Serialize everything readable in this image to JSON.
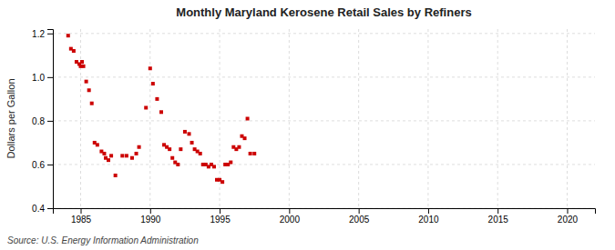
{
  "chart_data": {
    "type": "scatter",
    "title": "Monthly Maryland Kerosene Retail Sales by Refiners",
    "ylabel": "Dollars per Gallon",
    "source": "Source: U.S. Energy Information Administration",
    "x": [
      1984.1,
      1984.3,
      1984.5,
      1984.7,
      1984.9,
      1985.0,
      1985.1,
      1985.2,
      1985.4,
      1985.6,
      1985.8,
      1986.0,
      1986.2,
      1986.5,
      1986.7,
      1986.8,
      1987.0,
      1987.2,
      1987.5,
      1988.0,
      1988.3,
      1988.7,
      1989.0,
      1989.2,
      1989.7,
      1990.0,
      1990.2,
      1990.5,
      1990.8,
      1991.0,
      1991.2,
      1991.4,
      1991.6,
      1991.8,
      1992.0,
      1992.2,
      1992.5,
      1992.8,
      1993.0,
      1993.2,
      1993.4,
      1993.6,
      1993.8,
      1994.0,
      1994.2,
      1994.4,
      1994.6,
      1994.8,
      1995.0,
      1995.2,
      1995.4,
      1995.6,
      1995.8,
      1996.0,
      1996.2,
      1996.4,
      1996.6,
      1996.8,
      1997.0,
      1997.2,
      1997.5
    ],
    "values": [
      1.19,
      1.13,
      1.12,
      1.07,
      1.06,
      1.05,
      1.07,
      1.05,
      0.98,
      0.94,
      0.88,
      0.7,
      0.69,
      0.66,
      0.65,
      0.63,
      0.62,
      0.64,
      0.55,
      0.64,
      0.64,
      0.63,
      0.65,
      0.68,
      0.86,
      1.04,
      0.97,
      0.9,
      0.84,
      0.69,
      0.68,
      0.67,
      0.63,
      0.61,
      0.6,
      0.67,
      0.75,
      0.74,
      0.7,
      0.67,
      0.66,
      0.65,
      0.6,
      0.6,
      0.59,
      0.6,
      0.59,
      0.53,
      0.53,
      0.52,
      0.6,
      0.6,
      0.61,
      0.68,
      0.67,
      0.68,
      0.73,
      0.72,
      0.81,
      0.65,
      0.65
    ],
    "color": "#cc0000",
    "marker": "square",
    "xlim": [
      1983,
      2022
    ],
    "ylim": [
      0.4,
      1.22
    ],
    "xticks": [
      1985,
      1990,
      1995,
      2000,
      2005,
      2010,
      2015,
      2020
    ],
    "yticks": [
      0.4,
      0.6,
      0.8,
      {
        "value": 1.0,
        "label": "1.0"
      },
      1.2
    ],
    "grid": true
  }
}
